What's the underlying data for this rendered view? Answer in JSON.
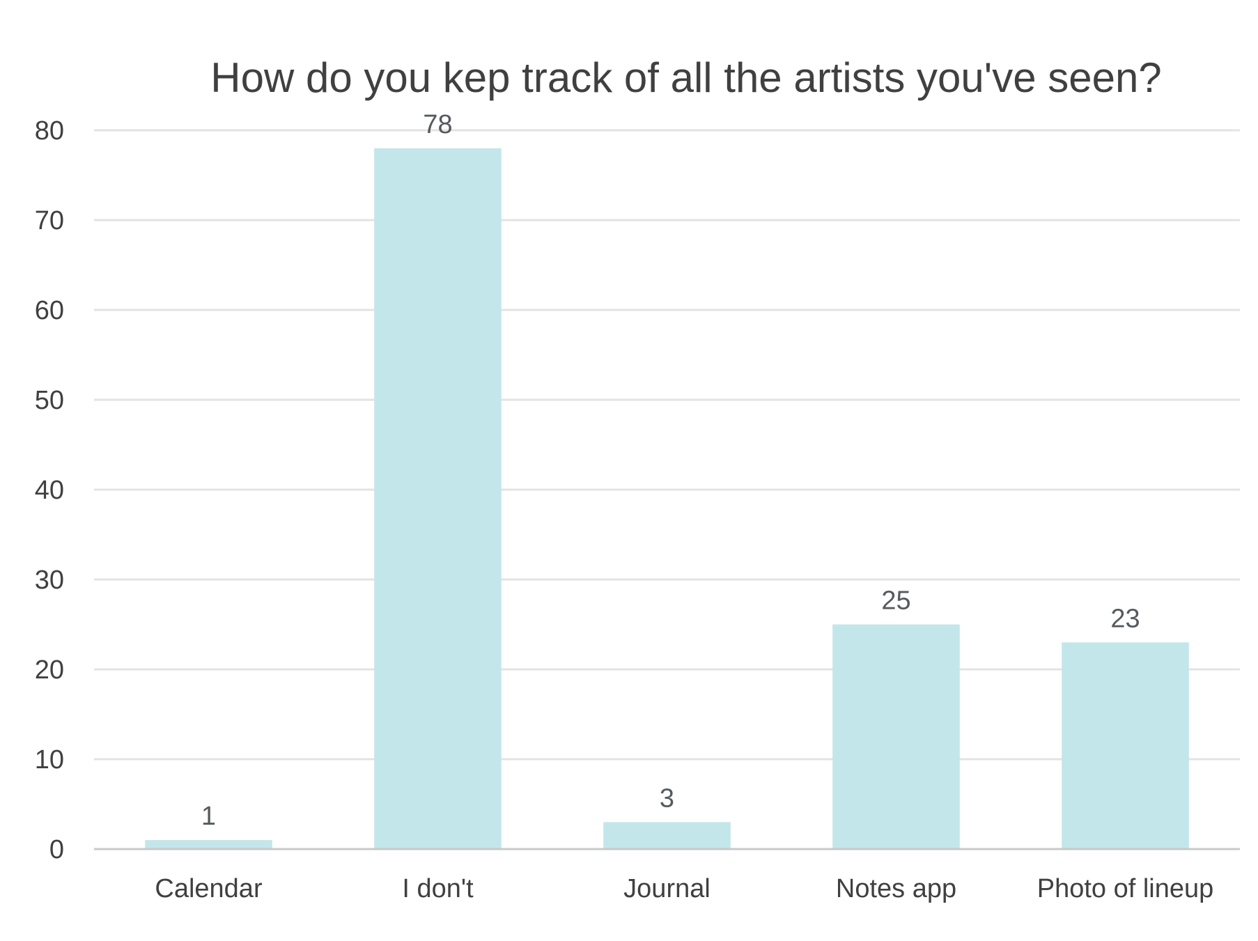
{
  "chart_data": {
    "type": "bar",
    "title": "How do you kep track of all the artists you've seen?",
    "xlabel": "",
    "ylabel": "",
    "categories": [
      "Calendar",
      "I don't",
      "Journal",
      "Notes app",
      "Photo of lineup"
    ],
    "values": [
      1,
      78,
      3,
      25,
      23
    ],
    "data_labels": [
      "1",
      "78",
      "3",
      "25",
      "23"
    ],
    "ylim": [
      0,
      80
    ],
    "yticks": [
      0,
      10,
      20,
      30,
      40,
      50,
      60,
      70,
      80
    ],
    "ytick_labels": [
      "0",
      "10",
      "20",
      "30",
      "40",
      "50",
      "60",
      "70",
      "80"
    ],
    "grid": true,
    "legend": "none",
    "bar_color": "#c3e6ea"
  }
}
